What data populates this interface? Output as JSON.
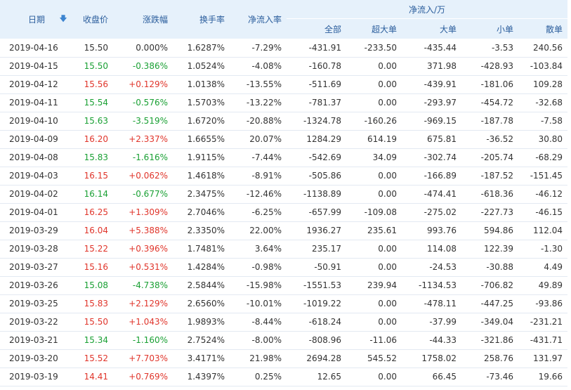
{
  "header": {
    "date": "日期",
    "sort_icon": "arrow-down-icon",
    "close": "收盘价",
    "change": "涨跌幅",
    "turnover": "换手率",
    "net_rate": "净流入率",
    "net_group": "净流入/万",
    "all": "全部",
    "super": "超大单",
    "large": "大单",
    "small": "小单",
    "retail": "散单"
  },
  "colors": {
    "up": "#e0352b",
    "down": "#1aa034",
    "header_bg": "#e6f1fb",
    "header_text": "#2a5d9c"
  },
  "rows": [
    {
      "date": "2019-04-16",
      "close": "15.50",
      "change": "0.000%",
      "turnover": "1.6287%",
      "rate": "-7.29%",
      "all": "-431.91",
      "super": "-233.50",
      "large": "-435.44",
      "small": "-3.53",
      "retail": "240.56",
      "dir": "flat"
    },
    {
      "date": "2019-04-15",
      "close": "15.50",
      "change": "-0.386%",
      "turnover": "1.0524%",
      "rate": "-4.08%",
      "all": "-160.78",
      "super": "0.00",
      "large": "371.98",
      "small": "-428.93",
      "retail": "-103.84",
      "dir": "down"
    },
    {
      "date": "2019-04-12",
      "close": "15.56",
      "change": "+0.129%",
      "turnover": "1.0138%",
      "rate": "-13.55%",
      "all": "-511.69",
      "super": "0.00",
      "large": "-439.91",
      "small": "-181.06",
      "retail": "109.28",
      "dir": "up"
    },
    {
      "date": "2019-04-11",
      "close": "15.54",
      "change": "-0.576%",
      "turnover": "1.5703%",
      "rate": "-13.22%",
      "all": "-781.37",
      "super": "0.00",
      "large": "-293.97",
      "small": "-454.72",
      "retail": "-32.68",
      "dir": "down"
    },
    {
      "date": "2019-04-10",
      "close": "15.63",
      "change": "-3.519%",
      "turnover": "1.6720%",
      "rate": "-20.88%",
      "all": "-1324.78",
      "super": "-160.26",
      "large": "-969.15",
      "small": "-187.78",
      "retail": "-7.58",
      "dir": "down"
    },
    {
      "date": "2019-04-09",
      "close": "16.20",
      "change": "+2.337%",
      "turnover": "1.6655%",
      "rate": "20.07%",
      "all": "1284.29",
      "super": "614.19",
      "large": "675.81",
      "small": "-36.52",
      "retail": "30.80",
      "dir": "up"
    },
    {
      "date": "2019-04-08",
      "close": "15.83",
      "change": "-1.616%",
      "turnover": "1.9115%",
      "rate": "-7.44%",
      "all": "-542.69",
      "super": "34.09",
      "large": "-302.74",
      "small": "-205.74",
      "retail": "-68.29",
      "dir": "down"
    },
    {
      "date": "2019-04-03",
      "close": "16.15",
      "change": "+0.062%",
      "turnover": "1.4618%",
      "rate": "-8.91%",
      "all": "-505.86",
      "super": "0.00",
      "large": "-166.89",
      "small": "-187.52",
      "retail": "-151.45",
      "dir": "up"
    },
    {
      "date": "2019-04-02",
      "close": "16.14",
      "change": "-0.677%",
      "turnover": "2.3475%",
      "rate": "-12.46%",
      "all": "-1138.89",
      "super": "0.00",
      "large": "-474.41",
      "small": "-618.36",
      "retail": "-46.12",
      "dir": "down"
    },
    {
      "date": "2019-04-01",
      "close": "16.25",
      "change": "+1.309%",
      "turnover": "2.7046%",
      "rate": "-6.25%",
      "all": "-657.99",
      "super": "-109.08",
      "large": "-275.02",
      "small": "-227.73",
      "retail": "-46.15",
      "dir": "up"
    },
    {
      "date": "2019-03-29",
      "close": "16.04",
      "change": "+5.388%",
      "turnover": "2.3350%",
      "rate": "22.00%",
      "all": "1936.27",
      "super": "235.61",
      "large": "993.76",
      "small": "594.86",
      "retail": "112.04",
      "dir": "up"
    },
    {
      "date": "2019-03-28",
      "close": "15.22",
      "change": "+0.396%",
      "turnover": "1.7481%",
      "rate": "3.64%",
      "all": "235.17",
      "super": "0.00",
      "large": "114.08",
      "small": "122.39",
      "retail": "-1.30",
      "dir": "up"
    },
    {
      "date": "2019-03-27",
      "close": "15.16",
      "change": "+0.531%",
      "turnover": "1.4284%",
      "rate": "-0.98%",
      "all": "-50.91",
      "super": "0.00",
      "large": "-24.53",
      "small": "-30.88",
      "retail": "4.49",
      "dir": "up"
    },
    {
      "date": "2019-03-26",
      "close": "15.08",
      "change": "-4.738%",
      "turnover": "2.5844%",
      "rate": "-15.98%",
      "all": "-1551.53",
      "super": "239.94",
      "large": "-1134.53",
      "small": "-706.82",
      "retail": "49.89",
      "dir": "down"
    },
    {
      "date": "2019-03-25",
      "close": "15.83",
      "change": "+2.129%",
      "turnover": "2.6560%",
      "rate": "-10.01%",
      "all": "-1019.22",
      "super": "0.00",
      "large": "-478.11",
      "small": "-447.25",
      "retail": "-93.86",
      "dir": "up"
    },
    {
      "date": "2019-03-22",
      "close": "15.50",
      "change": "+1.043%",
      "turnover": "1.9893%",
      "rate": "-8.44%",
      "all": "-618.24",
      "super": "0.00",
      "large": "-37.99",
      "small": "-349.04",
      "retail": "-231.21",
      "dir": "up"
    },
    {
      "date": "2019-03-21",
      "close": "15.34",
      "change": "-1.160%",
      "turnover": "2.7524%",
      "rate": "-8.00%",
      "all": "-808.96",
      "super": "-11.06",
      "large": "-44.33",
      "small": "-321.86",
      "retail": "-431.71",
      "dir": "down"
    },
    {
      "date": "2019-03-20",
      "close": "15.52",
      "change": "+7.703%",
      "turnover": "3.4171%",
      "rate": "21.98%",
      "all": "2694.28",
      "super": "545.52",
      "large": "1758.02",
      "small": "258.76",
      "retail": "131.97",
      "dir": "up"
    },
    {
      "date": "2019-03-19",
      "close": "14.41",
      "change": "+0.769%",
      "turnover": "1.4397%",
      "rate": "0.25%",
      "all": "12.65",
      "super": "0.00",
      "large": "66.45",
      "small": "-73.46",
      "retail": "19.66",
      "dir": "up"
    }
  ]
}
